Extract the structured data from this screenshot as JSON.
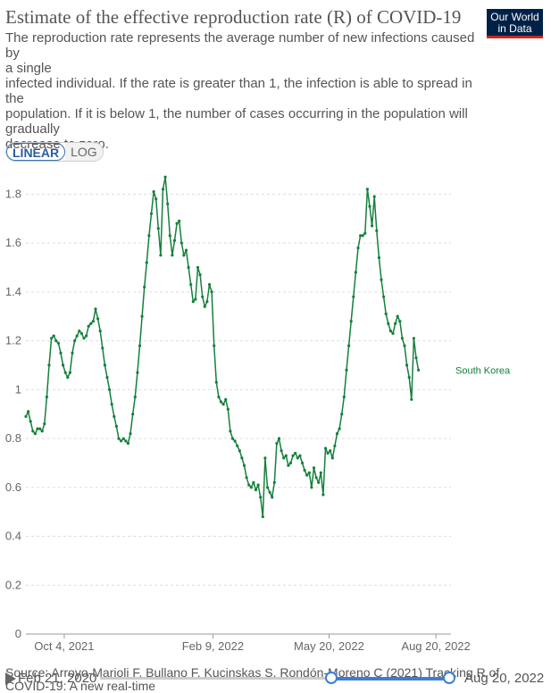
{
  "header": {
    "title": "Estimate of the effective reproduction rate (R) of COVID-19",
    "subtitle_lines": [
      "The reproduction rate represents the average number of new infections caused by",
      "a single",
      "infected individual. If the rate is greater than 1, the infection is able to spread in the",
      "population. If it is below 1, the number of cases occurring in the population will",
      "gradually",
      "decrease to zero."
    ],
    "logo_line1": "Our World",
    "logo_line2": "in Data"
  },
  "controls": {
    "linear_label": "LINEAR",
    "log_label": "LOG"
  },
  "footer": {
    "source": "Source: Arroyo-Marioli F, Bullano F, Kucinskas S, Rondón-Moreno C (2021) Tracking R of",
    "source2": "COVID-19: A new real-time"
  },
  "timeline": {
    "start_label": "Feb 21, 2020",
    "end_label": "Aug 20, 2022"
  },
  "colors": {
    "series": "#15803d",
    "grid": "#dddddd",
    "accent": "#3a7fd5"
  },
  "chart_data": {
    "type": "line",
    "title": "Estimate of the effective reproduction rate (R) of COVID-19",
    "xlabel": "",
    "ylabel": "",
    "x_range": [
      "2021-09-01",
      "2022-09-02"
    ],
    "ylim": [
      0,
      1.9
    ],
    "yticks": [
      0,
      0.2,
      0.4,
      0.6,
      0.8,
      1,
      1.2,
      1.4,
      1.6,
      1.8
    ],
    "ytick_labels": [
      "0",
      "0.2",
      "0.4",
      "0.6",
      "0.8",
      "1",
      "1.2",
      "1.4",
      "1.6",
      "1.8"
    ],
    "xticks": [
      {
        "date": "2021-10-04",
        "label": "Oct 4, 2021"
      },
      {
        "date": "2022-02-09",
        "label": "Feb 9, 2022"
      },
      {
        "date": "2022-05-20",
        "label": "May 20, 2022"
      },
      {
        "date": "2022-08-20",
        "label": "Aug 20, 2022"
      }
    ],
    "series": [
      {
        "name": "South Korea",
        "points": [
          [
            "2021-09-01",
            0.89
          ],
          [
            "2021-09-03",
            0.91
          ],
          [
            "2021-09-05",
            0.87
          ],
          [
            "2021-09-07",
            0.83
          ],
          [
            "2021-09-09",
            0.82
          ],
          [
            "2021-09-11",
            0.84
          ],
          [
            "2021-09-13",
            0.84
          ],
          [
            "2021-09-15",
            0.83
          ],
          [
            "2021-09-17",
            0.86
          ],
          [
            "2021-09-19",
            0.97
          ],
          [
            "2021-09-21",
            1.1
          ],
          [
            "2021-09-23",
            1.21
          ],
          [
            "2021-09-25",
            1.22
          ],
          [
            "2021-09-27",
            1.2
          ],
          [
            "2021-09-29",
            1.19
          ],
          [
            "2021-10-01",
            1.15
          ],
          [
            "2021-10-03",
            1.1
          ],
          [
            "2021-10-05",
            1.07
          ],
          [
            "2021-10-07",
            1.05
          ],
          [
            "2021-10-09",
            1.07
          ],
          [
            "2021-10-11",
            1.15
          ],
          [
            "2021-10-13",
            1.2
          ],
          [
            "2021-10-15",
            1.22
          ],
          [
            "2021-10-17",
            1.24
          ],
          [
            "2021-10-19",
            1.23
          ],
          [
            "2021-10-21",
            1.21
          ],
          [
            "2021-10-23",
            1.22
          ],
          [
            "2021-10-25",
            1.26
          ],
          [
            "2021-10-27",
            1.27
          ],
          [
            "2021-10-29",
            1.28
          ],
          [
            "2021-10-31",
            1.33
          ],
          [
            "2021-11-02",
            1.29
          ],
          [
            "2021-11-04",
            1.24
          ],
          [
            "2021-11-06",
            1.17
          ],
          [
            "2021-11-08",
            1.1
          ],
          [
            "2021-11-10",
            1.05
          ],
          [
            "2021-11-12",
            1.0
          ],
          [
            "2021-11-14",
            0.94
          ],
          [
            "2021-11-16",
            0.89
          ],
          [
            "2021-11-18",
            0.85
          ],
          [
            "2021-11-20",
            0.8
          ],
          [
            "2021-11-22",
            0.79
          ],
          [
            "2021-11-24",
            0.8
          ],
          [
            "2021-11-26",
            0.79
          ],
          [
            "2021-11-28",
            0.78
          ],
          [
            "2021-11-30",
            0.82
          ],
          [
            "2021-12-02",
            0.9
          ],
          [
            "2021-12-04",
            0.97
          ],
          [
            "2021-12-06",
            1.07
          ],
          [
            "2021-12-08",
            1.18
          ],
          [
            "2021-12-10",
            1.3
          ],
          [
            "2021-12-12",
            1.42
          ],
          [
            "2021-12-14",
            1.52
          ],
          [
            "2021-12-16",
            1.63
          ],
          [
            "2021-12-18",
            1.72
          ],
          [
            "2021-12-20",
            1.81
          ],
          [
            "2021-12-22",
            1.78
          ],
          [
            "2021-12-24",
            1.66
          ],
          [
            "2021-12-26",
            1.55
          ],
          [
            "2021-12-28",
            1.82
          ],
          [
            "2021-12-30",
            1.87
          ],
          [
            "2022-01-01",
            1.76
          ],
          [
            "2022-01-03",
            1.63
          ],
          [
            "2022-01-05",
            1.55
          ],
          [
            "2022-01-07",
            1.61
          ],
          [
            "2022-01-09",
            1.68
          ],
          [
            "2022-01-11",
            1.69
          ],
          [
            "2022-01-13",
            1.6
          ],
          [
            "2022-01-15",
            1.55
          ],
          [
            "2022-01-17",
            1.57
          ],
          [
            "2022-01-19",
            1.5
          ],
          [
            "2022-01-21",
            1.43
          ],
          [
            "2022-01-23",
            1.36
          ],
          [
            "2022-01-25",
            1.37
          ],
          [
            "2022-01-27",
            1.5
          ],
          [
            "2022-01-29",
            1.47
          ],
          [
            "2022-01-31",
            1.38
          ],
          [
            "2022-02-02",
            1.34
          ],
          [
            "2022-02-04",
            1.36
          ],
          [
            "2022-02-06",
            1.43
          ],
          [
            "2022-02-08",
            1.4
          ],
          [
            "2022-02-10",
            1.18
          ],
          [
            "2022-02-12",
            1.03
          ],
          [
            "2022-02-14",
            0.97
          ],
          [
            "2022-02-16",
            0.95
          ],
          [
            "2022-02-18",
            0.94
          ],
          [
            "2022-02-20",
            0.96
          ],
          [
            "2022-02-22",
            0.92
          ],
          [
            "2022-02-24",
            0.83
          ],
          [
            "2022-02-26",
            0.8
          ],
          [
            "2022-02-28",
            0.79
          ],
          [
            "2022-03-02",
            0.77
          ],
          [
            "2022-03-04",
            0.75
          ],
          [
            "2022-03-06",
            0.72
          ],
          [
            "2022-03-08",
            0.69
          ],
          [
            "2022-03-10",
            0.64
          ],
          [
            "2022-03-12",
            0.61
          ],
          [
            "2022-03-14",
            0.6
          ],
          [
            "2022-03-16",
            0.62
          ],
          [
            "2022-03-18",
            0.59
          ],
          [
            "2022-03-20",
            0.61
          ],
          [
            "2022-03-22",
            0.56
          ],
          [
            "2022-03-24",
            0.48
          ],
          [
            "2022-03-26",
            0.72
          ],
          [
            "2022-03-28",
            0.6
          ],
          [
            "2022-03-30",
            0.58
          ],
          [
            "2022-04-01",
            0.56
          ],
          [
            "2022-04-03",
            0.62
          ],
          [
            "2022-04-05",
            0.78
          ],
          [
            "2022-04-07",
            0.8
          ],
          [
            "2022-04-09",
            0.75
          ],
          [
            "2022-04-11",
            0.72
          ],
          [
            "2022-04-13",
            0.73
          ],
          [
            "2022-04-15",
            0.69
          ],
          [
            "2022-04-17",
            0.7
          ],
          [
            "2022-04-19",
            0.73
          ],
          [
            "2022-04-21",
            0.74
          ],
          [
            "2022-04-23",
            0.72
          ],
          [
            "2022-04-25",
            0.73
          ],
          [
            "2022-04-27",
            0.7
          ],
          [
            "2022-04-29",
            0.67
          ],
          [
            "2022-05-01",
            0.65
          ],
          [
            "2022-05-03",
            0.66
          ],
          [
            "2022-05-05",
            0.6
          ],
          [
            "2022-05-07",
            0.68
          ],
          [
            "2022-05-09",
            0.64
          ],
          [
            "2022-05-11",
            0.62
          ],
          [
            "2022-05-13",
            0.66
          ],
          [
            "2022-05-15",
            0.57
          ],
          [
            "2022-05-17",
            0.76
          ],
          [
            "2022-05-19",
            0.74
          ],
          [
            "2022-05-21",
            0.75
          ],
          [
            "2022-05-23",
            0.72
          ],
          [
            "2022-05-25",
            0.77
          ],
          [
            "2022-05-27",
            0.82
          ],
          [
            "2022-05-29",
            0.84
          ],
          [
            "2022-05-31",
            0.9
          ],
          [
            "2022-06-02",
            0.97
          ],
          [
            "2022-06-04",
            1.08
          ],
          [
            "2022-06-06",
            1.18
          ],
          [
            "2022-06-08",
            1.28
          ],
          [
            "2022-06-10",
            1.38
          ],
          [
            "2022-06-12",
            1.48
          ],
          [
            "2022-06-14",
            1.58
          ],
          [
            "2022-06-16",
            1.63
          ],
          [
            "2022-06-18",
            1.63
          ],
          [
            "2022-06-20",
            1.64
          ],
          [
            "2022-06-22",
            1.82
          ],
          [
            "2022-06-24",
            1.75
          ],
          [
            "2022-06-26",
            1.67
          ],
          [
            "2022-06-28",
            1.79
          ],
          [
            "2022-06-30",
            1.65
          ],
          [
            "2022-07-02",
            1.54
          ],
          [
            "2022-07-04",
            1.45
          ],
          [
            "2022-07-06",
            1.38
          ],
          [
            "2022-07-08",
            1.31
          ],
          [
            "2022-07-10",
            1.27
          ],
          [
            "2022-07-12",
            1.24
          ],
          [
            "2022-07-14",
            1.23
          ],
          [
            "2022-07-16",
            1.27
          ],
          [
            "2022-07-18",
            1.3
          ],
          [
            "2022-07-20",
            1.28
          ],
          [
            "2022-07-22",
            1.21
          ],
          [
            "2022-07-24",
            1.18
          ],
          [
            "2022-07-26",
            1.1
          ],
          [
            "2022-07-28",
            1.05
          ],
          [
            "2022-07-30",
            0.96
          ],
          [
            "2022-08-01",
            1.21
          ],
          [
            "2022-08-03",
            1.13
          ],
          [
            "2022-08-05",
            1.08
          ]
        ]
      }
    ],
    "series_label": "South Korea",
    "grid": true,
    "legend": "inline-right"
  }
}
